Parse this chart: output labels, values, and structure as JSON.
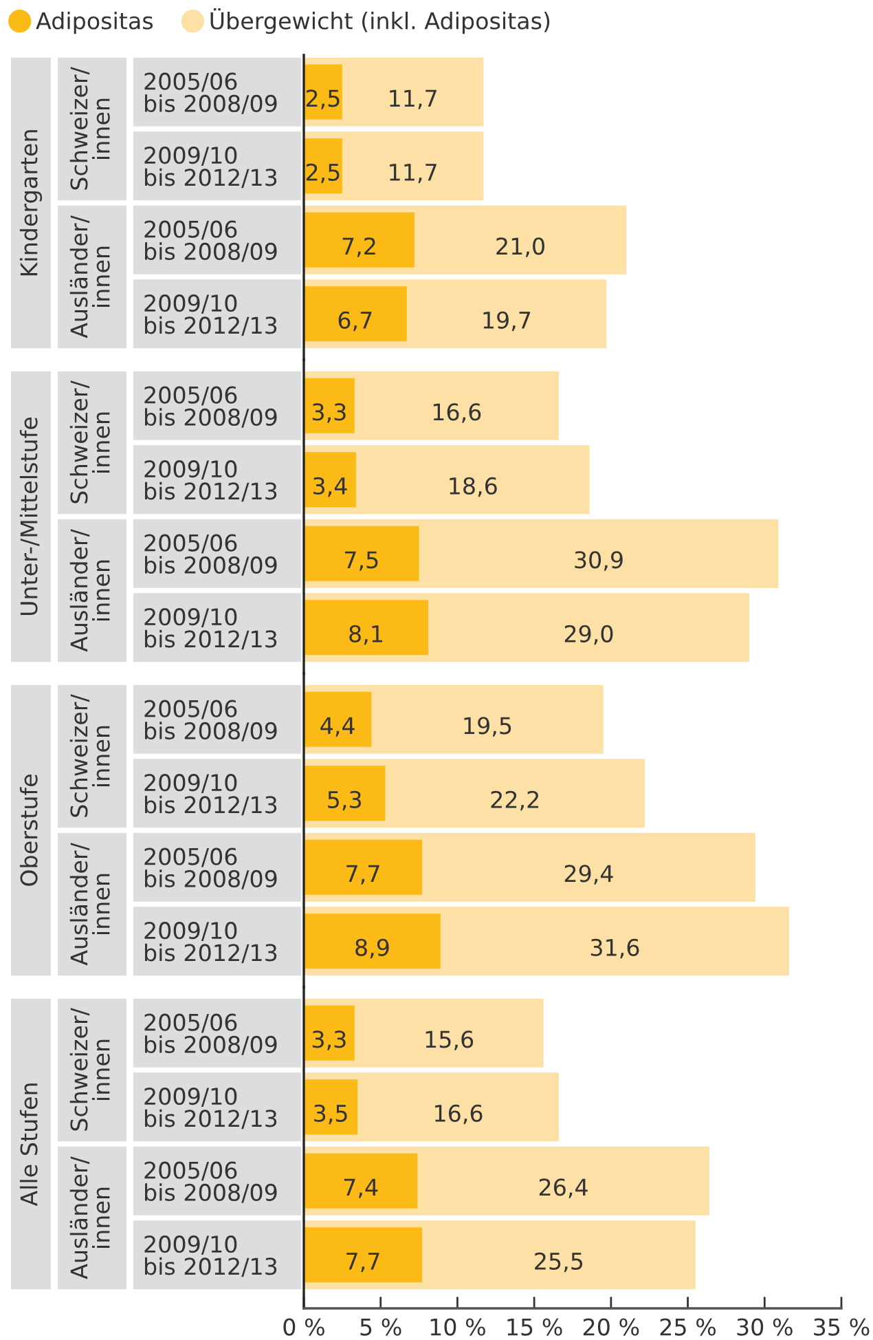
{
  "chart_data": [
    {
      "type": "bar",
      "orientation": "horizontal",
      "title": "Kindergarten",
      "annotations": [
        "Schweizer/\ninnen",
        "Ausländer/\ninnen"
      ],
      "categories": [
        "2005/06\nbis 2008/09",
        "2009/10\nbis 2012/13",
        "2005/06\nbis 2008/09",
        "2009/10\nbis 2012/13"
      ],
      "series": [
        {
          "name": "Adipositas",
          "color": "#fbba16",
          "values": [
            2.5,
            2.5,
            7.2,
            6.7
          ],
          "value_labels": [
            "2,5",
            "2,5",
            "7,2",
            "6,7"
          ]
        },
        {
          "name": "Übergewicht (inkl. Adipositas)",
          "color": "#fde0a5",
          "values": [
            11.7,
            11.7,
            21.0,
            19.7
          ],
          "value_labels": [
            "11,7",
            "11,7",
            "21,0",
            "19,7"
          ]
        }
      ],
      "xlim": [
        0,
        35
      ],
      "tick_labels": "y",
      "legend": "top left"
    },
    {
      "type": "bar",
      "orientation": "horizontal",
      "title": "Unter-/Mittelstufe",
      "annotations": [
        "Schweizer/\ninnen",
        "Ausländer/\ninnen"
      ],
      "categories": [
        "2005/06\nbis 2008/09",
        "2009/10\nbis 2012/13",
        "2005/06\nbis 2008/09",
        "2009/10\nbis 2012/13"
      ],
      "series": [
        {
          "color": "#fbba16",
          "values": [
            3.3,
            3.4,
            7.5,
            8.1
          ],
          "value_labels": [
            "3,3",
            "3,4",
            "7,5",
            "8,1"
          ]
        },
        {
          "color": "#fde0a5",
          "values": [
            16.6,
            18.6,
            30.9,
            29.0
          ],
          "value_labels": [
            "16,6",
            "18,6",
            "30,9",
            "29,0"
          ]
        }
      ],
      "xlim": [
        0,
        35
      ],
      "tick_labels": "y"
    },
    {
      "type": "bar",
      "orientation": "horizontal",
      "title": "Oberstufe",
      "annotations": [
        "Schweizer/\ninnen",
        "Ausländer/\ninnen"
      ],
      "categories": [
        "2005/06\nbis 2008/09",
        "2009/10\nbis 2012/13",
        "2005/06\nbis 2008/09",
        "2009/10\nbis 2012/13"
      ],
      "series": [
        {
          "color": "#fbba16",
          "values": [
            4.4,
            5.3,
            7.7,
            8.9
          ],
          "value_labels": [
            "4,4",
            "5,3",
            "7,7",
            "8,9"
          ]
        },
        {
          "color": "#fde0a5",
          "values": [
            19.5,
            22.2,
            29.4,
            31.6
          ],
          "value_labels": [
            "19,5",
            "22,2",
            "29,4",
            "31,6"
          ]
        }
      ],
      "xlim": [
        0,
        35
      ],
      "tick_labels": "y"
    },
    {
      "type": "bar",
      "orientation": "horizontal",
      "title": "Alle Stufen",
      "annotations": [
        "Schweizer/\ninnen",
        "Ausländer/\ninnen"
      ],
      "categories": [
        "2005/06\nbis 2008/09",
        "2009/10\nbis 2012/13",
        "2005/06\nbis 2008/09",
        "2009/10\nbis 2012/13"
      ],
      "series": [
        {
          "color": "#fbba16",
          "values": [
            3.3,
            3.5,
            7.4,
            7.7
          ],
          "value_labels": [
            "3,3",
            "3,5",
            "7,4",
            "7,7"
          ]
        },
        {
          "color": "#fde0a5",
          "values": [
            15.6,
            16.6,
            26.4,
            25.5
          ],
          "value_labels": [
            "15,6",
            "16,6",
            "26,4",
            "25,5"
          ]
        }
      ],
      "xlim": [
        0,
        35
      ],
      "xticks": [
        {
          "value": 0,
          "label": "0 %"
        },
        {
          "value": 5,
          "label": "5 %"
        },
        {
          "value": 10,
          "label": "10 %"
        },
        {
          "value": 15,
          "label": "15 %"
        },
        {
          "value": 20,
          "label": "20 %"
        },
        {
          "value": 25,
          "label": "25 %"
        },
        {
          "value": 30,
          "label": "30 %"
        },
        {
          "value": 35,
          "label": "35 %"
        }
      ]
    }
  ]
}
